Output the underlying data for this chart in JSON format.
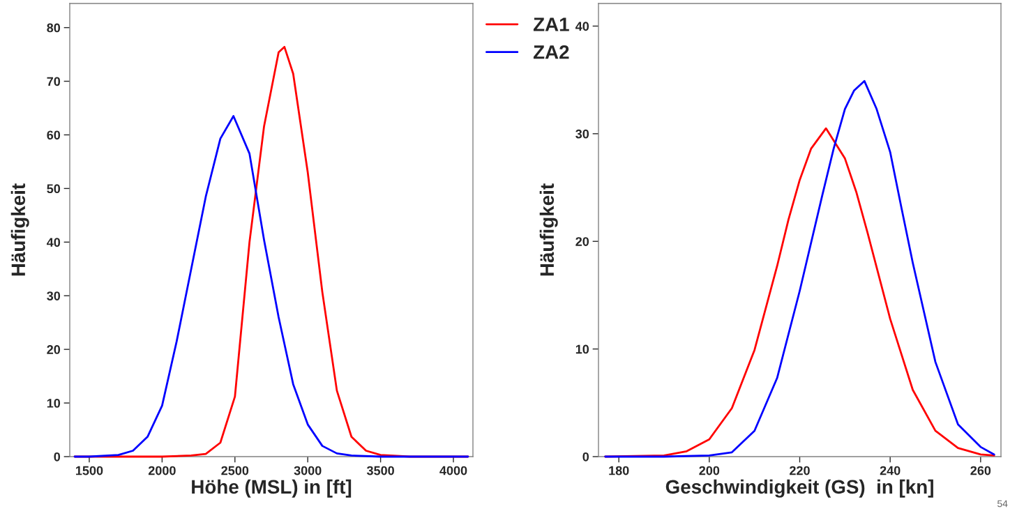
{
  "chart_data": [
    {
      "type": "line",
      "xlabel": "Höhe (MSL) in [ft]",
      "ylabel": "Häufigkeit",
      "xlim": [
        1366,
        4134
      ],
      "xticks": [
        1500,
        2000,
        2500,
        3000,
        3500,
        4000
      ],
      "ylim": [
        0,
        84.5
      ],
      "yticks": [
        0,
        10,
        20,
        30,
        40,
        50,
        60,
        70,
        80
      ],
      "grid": false,
      "legend": "right",
      "line_style": "solid",
      "series": [
        {
          "name": "ZA1",
          "color": "#ff0000",
          "x": [
            1400,
            2000,
            2200,
            2300,
            2400,
            2500,
            2600,
            2700,
            2800,
            2840,
            2900,
            3000,
            3100,
            3200,
            3300,
            3400,
            3500,
            3700,
            4100
          ],
          "values": [
            0,
            0,
            0.2,
            0.5,
            2.6,
            11.2,
            40,
            61.6,
            75.4,
            76.4,
            71.4,
            53,
            30.7,
            12.3,
            3.7,
            1.1,
            0.3,
            0,
            0
          ]
        },
        {
          "name": "ZA2",
          "color": "#0000ff",
          "x": [
            1400,
            1500,
            1700,
            1800,
            1900,
            2000,
            2100,
            2200,
            2300,
            2400,
            2490,
            2600,
            2700,
            2800,
            2900,
            3000,
            3100,
            3200,
            3300,
            3500,
            4100
          ],
          "values": [
            0,
            0,
            0.3,
            1.1,
            3.7,
            9.5,
            21.5,
            35,
            48.5,
            59.3,
            63.5,
            56.5,
            40.4,
            26,
            13.5,
            6,
            2,
            0.6,
            0.2,
            0,
            0
          ]
        }
      ]
    },
    {
      "type": "line",
      "xlabel": "Geschwindigkeit (GS)  in [kn]",
      "ylabel": "Häufigkeit",
      "xlim": [
        175.5,
        264.5
      ],
      "xticks": [
        180,
        200,
        220,
        240,
        260
      ],
      "ylim": [
        0,
        42.1
      ],
      "yticks": [
        0,
        10,
        20,
        30,
        40
      ],
      "grid": false,
      "line_style": "solid",
      "annotations": [
        "54"
      ],
      "series": [
        {
          "color": "#ff0000",
          "x": [
            177,
            190,
            195,
            200,
            205,
            210,
            215,
            217.5,
            220,
            222.5,
            225.8,
            230,
            232.5,
            235,
            240,
            245,
            250,
            255,
            260,
            263
          ],
          "values": [
            0,
            0.1,
            0.5,
            1.6,
            4.5,
            9.9,
            17.7,
            22,
            25.7,
            28.6,
            30.5,
            27.7,
            24.6,
            20.8,
            12.8,
            6.2,
            2.4,
            0.8,
            0.2,
            0.1
          ]
        },
        {
          "color": "#0000ff",
          "x": [
            177,
            190,
            200,
            205,
            210,
            215,
            220,
            225,
            227.5,
            230,
            232,
            234.3,
            237,
            240,
            242.5,
            245,
            250,
            255,
            260,
            263
          ],
          "values": [
            0,
            0,
            0.1,
            0.4,
            2.4,
            7.3,
            15.4,
            24.3,
            28.6,
            32.3,
            34,
            34.9,
            32.3,
            28.3,
            23.1,
            18,
            8.8,
            3,
            0.9,
            0.2
          ]
        }
      ]
    }
  ]
}
